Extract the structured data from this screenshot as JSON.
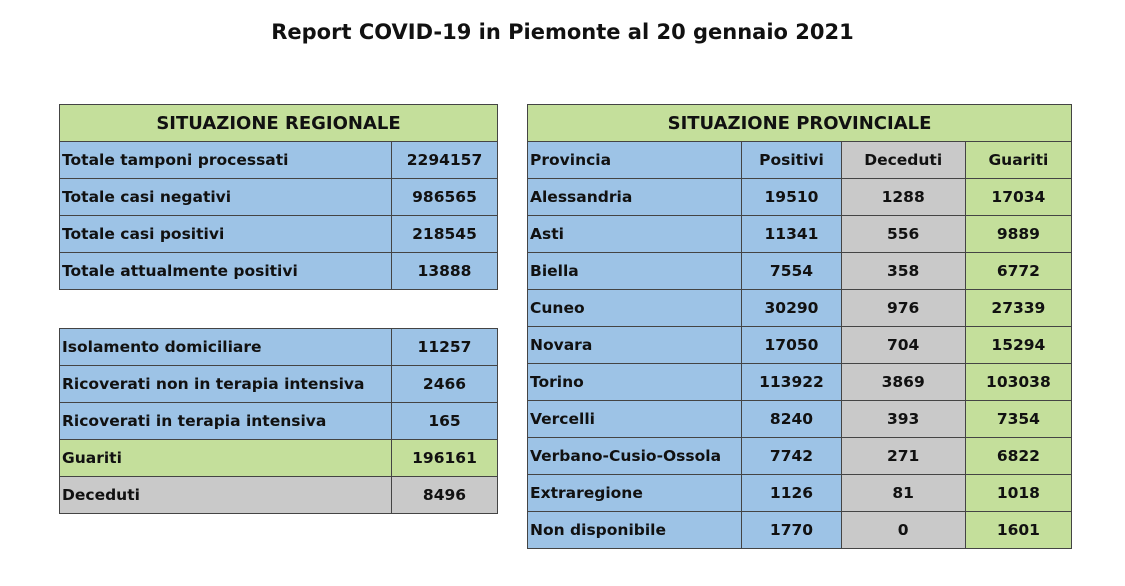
{
  "title": "Report COVID-19 in Piemonte al 20 gennaio 2021",
  "regional": {
    "header": "SITUAZIONE REGIONALE",
    "rows_top": [
      {
        "label": "Totale tamponi processati",
        "value": "2294157"
      },
      {
        "label": "Totale casi negativi",
        "value": "986565"
      },
      {
        "label": "Totale casi positivi",
        "value": "218545"
      },
      {
        "label": "Totale attualmente positivi",
        "value": "13888"
      }
    ],
    "rows_bottom": [
      {
        "label": "Isolamento domiciliare",
        "value": "11257"
      },
      {
        "label": "Ricoverati non in terapia intensiva",
        "value": "2466"
      },
      {
        "label": "Ricoverati in terapia intensiva",
        "value": "165"
      },
      {
        "label": "Guariti",
        "value": "196161"
      },
      {
        "label": "Deceduti",
        "value": "8496"
      }
    ]
  },
  "provincial": {
    "header": "SITUAZIONE PROVINCIALE",
    "columns": [
      "Provincia",
      "Positivi",
      "Deceduti",
      "Guariti"
    ],
    "rows": [
      {
        "name": "Alessandria",
        "positivi": "19510",
        "deceduti": "1288",
        "guariti": "17034"
      },
      {
        "name": "Asti",
        "positivi": "11341",
        "deceduti": "556",
        "guariti": "9889"
      },
      {
        "name": "Biella",
        "positivi": "7554",
        "deceduti": "358",
        "guariti": "6772"
      },
      {
        "name": "Cuneo",
        "positivi": "30290",
        "deceduti": "976",
        "guariti": "27339"
      },
      {
        "name": "Novara",
        "positivi": "17050",
        "deceduti": "704",
        "guariti": "15294"
      },
      {
        "name": "Torino",
        "positivi": "113922",
        "deceduti": "3869",
        "guariti": "103038"
      },
      {
        "name": "Vercelli",
        "positivi": "8240",
        "deceduti": "393",
        "guariti": "7354"
      },
      {
        "name": "Verbano-Cusio-Ossola",
        "positivi": "7742",
        "deceduti": "271",
        "guariti": "6822"
      },
      {
        "name": "Extraregione",
        "positivi": "1126",
        "deceduti": "81",
        "guariti": "1018"
      },
      {
        "name": "Non disponibile",
        "positivi": "1770",
        "deceduti": "0",
        "guariti": "1601"
      }
    ]
  },
  "colors": {
    "blue": "#9dc3e6",
    "green": "#c4df9b",
    "grey": "#c9c9c9"
  }
}
